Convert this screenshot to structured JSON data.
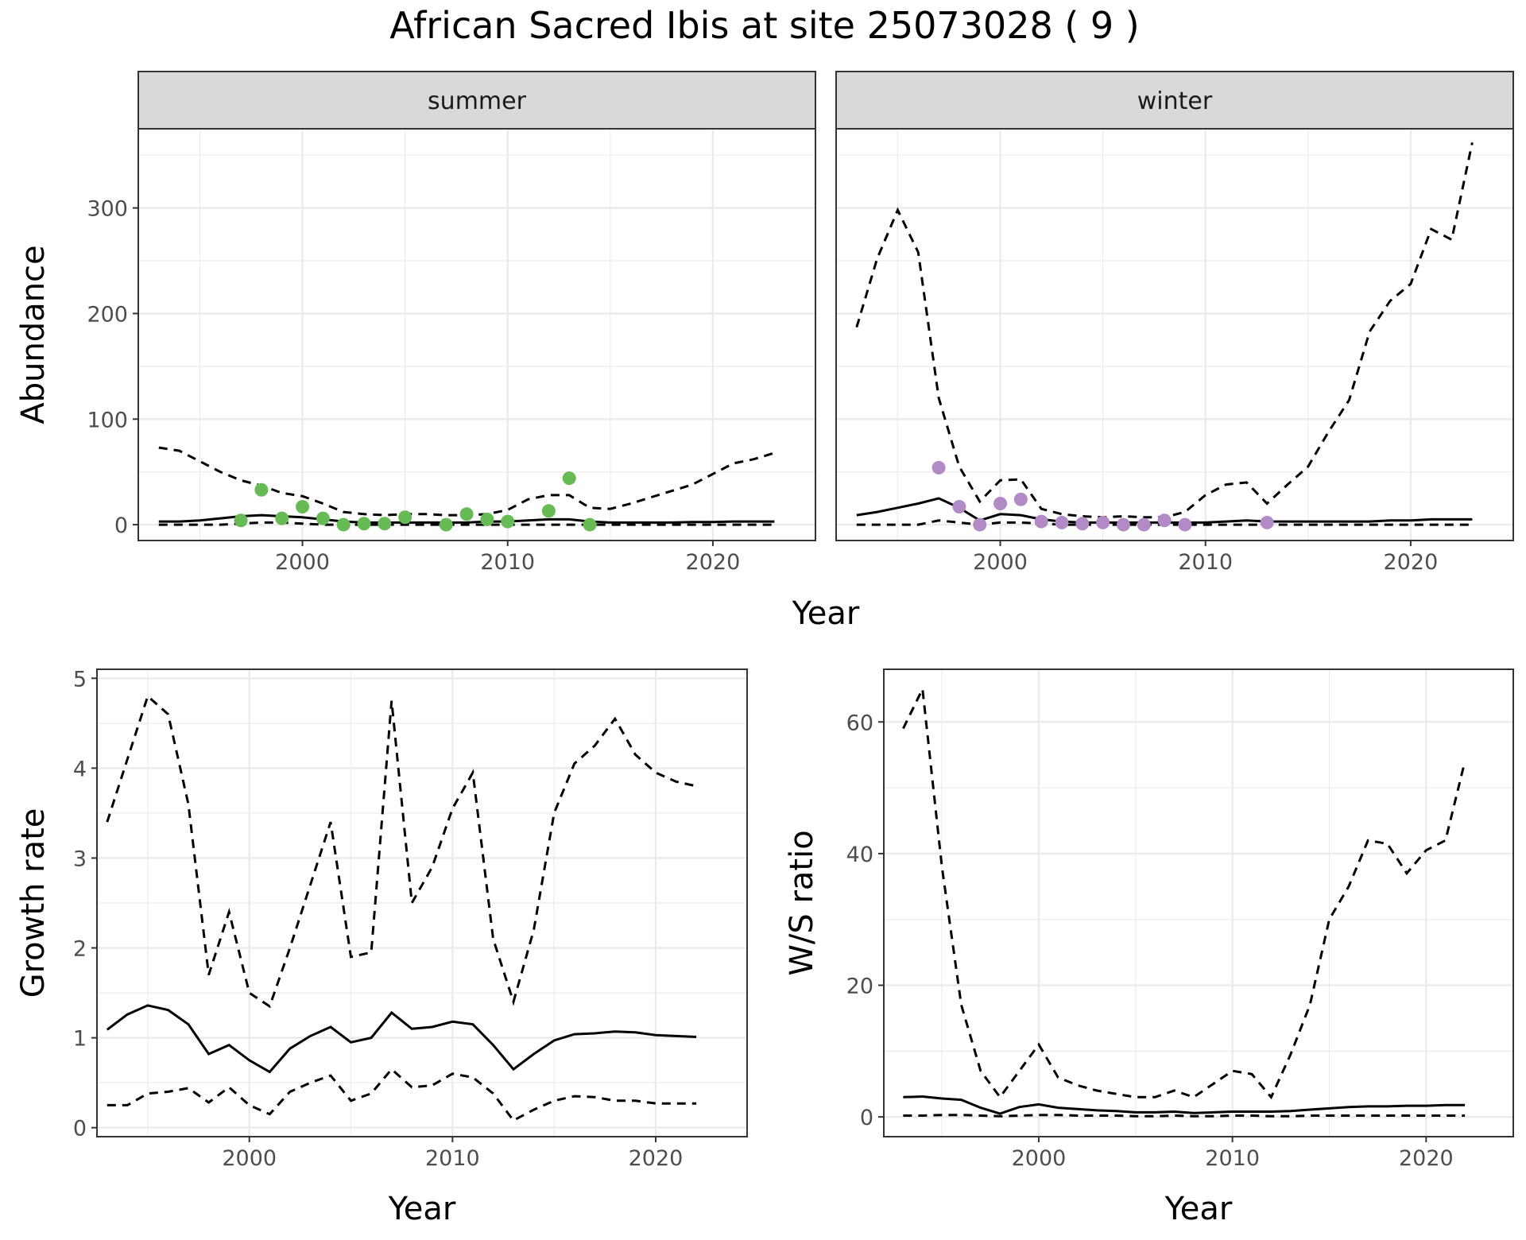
{
  "title": "African Sacred Ibis at site 25073028 ( 9 )",
  "colors": {
    "summer": "#66bb55",
    "winter": "#b28bc6",
    "line": "#000000",
    "strip": "#d9d9d9",
    "grid": "#ebebeb"
  },
  "chart_data": [
    {
      "type": "line",
      "name": "abundance",
      "facets": [
        "summer",
        "winter"
      ],
      "xlabel": "Year",
      "ylabel": "Abundance",
      "xlim": [
        1992,
        2025
      ],
      "ylim": [
        -15,
        375
      ],
      "xticks": [
        2000,
        2010,
        2020
      ],
      "yticks": [
        0,
        100,
        200,
        300
      ],
      "summer": {
        "x": [
          1993,
          1994,
          1995,
          1996,
          1997,
          1998,
          1999,
          2000,
          2001,
          2002,
          2003,
          2004,
          2005,
          2006,
          2007,
          2008,
          2009,
          2010,
          2011,
          2012,
          2013,
          2014,
          2015,
          2016,
          2017,
          2018,
          2019,
          2020,
          2021,
          2022,
          2023
        ],
        "mean": [
          3,
          3,
          4,
          6,
          8,
          9,
          8,
          7,
          5,
          3,
          2,
          2,
          2,
          2,
          2,
          2,
          3,
          3,
          4,
          5,
          5,
          3,
          2,
          2,
          2,
          2,
          2.5,
          2.5,
          3,
          3,
          3
        ],
        "upper": [
          73,
          70,
          60,
          50,
          42,
          37,
          30,
          27,
          20,
          12,
          10,
          9,
          10,
          10,
          9,
          9,
          10,
          14,
          24,
          28,
          28,
          16,
          15,
          20,
          26,
          32,
          38,
          48,
          58,
          62,
          68
        ],
        "lower": [
          0,
          0,
          0,
          0,
          1,
          2,
          2,
          1,
          0,
          0,
          0,
          0,
          0,
          0,
          0,
          0,
          0,
          0,
          0,
          0,
          0,
          0,
          0,
          0,
          0,
          0,
          0,
          0,
          0,
          0,
          0
        ],
        "points": {
          "x": [
            1997,
            1998,
            1999,
            2000,
            2001,
            2002,
            2003,
            2004,
            2005,
            2007,
            2008,
            2009,
            2010,
            2012,
            2013,
            2014
          ],
          "y": [
            4,
            33,
            6,
            17,
            6,
            0,
            1,
            1,
            7,
            0,
            10,
            5,
            3,
            13,
            44,
            0
          ]
        }
      },
      "winter": {
        "x": [
          1993,
          1994,
          1995,
          1996,
          1997,
          1998,
          1999,
          2000,
          2001,
          2002,
          2003,
          2004,
          2005,
          2006,
          2007,
          2008,
          2009,
          2010,
          2011,
          2012,
          2013,
          2014,
          2015,
          2016,
          2017,
          2018,
          2019,
          2020,
          2021,
          2022,
          2023
        ],
        "mean": [
          9,
          12,
          16,
          20,
          25,
          16,
          4,
          10,
          9,
          5,
          3,
          2,
          2,
          2,
          2,
          2,
          2,
          2,
          3,
          4,
          3,
          3,
          3,
          3,
          3,
          3,
          4,
          4,
          5,
          5,
          5
        ],
        "upper": [
          187,
          252,
          298,
          258,
          120,
          55,
          22,
          42,
          43,
          15,
          10,
          8,
          7,
          8,
          7,
          7,
          12,
          28,
          38,
          40,
          20,
          38,
          55,
          88,
          118,
          183,
          212,
          228,
          280,
          270,
          362
        ],
        "lower": [
          0,
          0,
          0,
          0,
          4,
          2,
          0,
          2,
          2,
          1,
          0,
          0,
          0,
          0,
          0,
          0,
          0,
          0,
          0,
          0,
          0,
          0,
          0,
          0,
          0,
          0,
          0,
          0,
          0,
          0,
          0
        ],
        "points": {
          "x": [
            1997,
            1998,
            1999,
            2000,
            2001,
            2002,
            2003,
            2004,
            2005,
            2006,
            2007,
            2008,
            2009,
            2013
          ],
          "y": [
            54,
            17,
            0,
            20,
            24,
            3,
            2,
            1,
            2,
            0,
            0,
            4,
            0,
            2
          ]
        }
      }
    },
    {
      "type": "line",
      "name": "growth",
      "xlabel": "Year",
      "ylabel": "Growth rate",
      "xlim": [
        1992.5,
        2024.5
      ],
      "ylim": [
        -0.1,
        5.1
      ],
      "xticks": [
        2000,
        2010,
        2020
      ],
      "yticks": [
        0,
        1,
        2,
        3,
        4,
        5
      ],
      "x": [
        1993,
        1994,
        1995,
        1996,
        1997,
        1998,
        1999,
        2000,
        2001,
        2002,
        2003,
        2004,
        2005,
        2006,
        2007,
        2008,
        2009,
        2010,
        2011,
        2012,
        2013,
        2014,
        2015,
        2016,
        2017,
        2018,
        2019,
        2020,
        2021,
        2022
      ],
      "mean": [
        1.09,
        1.26,
        1.36,
        1.31,
        1.15,
        0.82,
        0.92,
        0.75,
        0.62,
        0.88,
        1.02,
        1.12,
        0.95,
        1.0,
        1.28,
        1.1,
        1.12,
        1.18,
        1.15,
        0.92,
        0.65,
        0.82,
        0.97,
        1.04,
        1.05,
        1.07,
        1.06,
        1.03,
        1.02,
        1.01
      ],
      "upper": [
        3.4,
        4.1,
        4.8,
        4.6,
        3.6,
        1.7,
        2.4,
        1.5,
        1.35,
        2.0,
        2.7,
        3.4,
        1.9,
        1.95,
        4.75,
        2.5,
        2.9,
        3.55,
        3.95,
        2.1,
        1.4,
        2.2,
        3.5,
        4.05,
        4.25,
        4.55,
        4.15,
        3.95,
        3.85,
        3.8
      ],
      "lower": [
        0.25,
        0.25,
        0.38,
        0.4,
        0.44,
        0.28,
        0.45,
        0.25,
        0.15,
        0.4,
        0.5,
        0.58,
        0.3,
        0.38,
        0.65,
        0.45,
        0.47,
        0.6,
        0.56,
        0.38,
        0.08,
        0.2,
        0.3,
        0.35,
        0.34,
        0.3,
        0.3,
        0.27,
        0.27,
        0.27
      ]
    },
    {
      "type": "line",
      "name": "ratio",
      "xlabel": "Year",
      "ylabel": "W/S ratio",
      "xlim": [
        1992,
        2024.5
      ],
      "ylim": [
        -3,
        68
      ],
      "xticks": [
        2000,
        2010,
        2020
      ],
      "yticks": [
        0,
        20,
        40,
        60
      ],
      "x": [
        1993,
        1994,
        1995,
        1996,
        1997,
        1998,
        1999,
        2000,
        2001,
        2002,
        2003,
        2004,
        2005,
        2006,
        2007,
        2008,
        2009,
        2010,
        2011,
        2012,
        2013,
        2014,
        2015,
        2016,
        2017,
        2018,
        2019,
        2020,
        2021,
        2022
      ],
      "mean": [
        3,
        3.1,
        2.8,
        2.6,
        1.4,
        0.5,
        1.5,
        1.9,
        1.4,
        1.2,
        1.0,
        0.9,
        0.7,
        0.7,
        0.8,
        0.6,
        0.7,
        0.8,
        0.8,
        0.8,
        0.9,
        1.1,
        1.3,
        1.5,
        1.6,
        1.6,
        1.7,
        1.7,
        1.8,
        1.8
      ],
      "upper": [
        59,
        65,
        38,
        17,
        7,
        3,
        7,
        11,
        6,
        4.8,
        4,
        3.5,
        3,
        3,
        4,
        3,
        5,
        7,
        6.5,
        3,
        9.5,
        17,
        30,
        35,
        42,
        41.5,
        37,
        40.5,
        42,
        54
      ],
      "lower": [
        0.2,
        0.2,
        0.3,
        0.3,
        0.2,
        0.1,
        0.2,
        0.3,
        0.3,
        0.2,
        0.2,
        0.2,
        0.1,
        0.1,
        0.2,
        0.1,
        0.1,
        0.2,
        0.2,
        0.1,
        0.1,
        0.2,
        0.2,
        0.2,
        0.2,
        0.2,
        0.2,
        0.2,
        0.2,
        0.2
      ]
    }
  ]
}
